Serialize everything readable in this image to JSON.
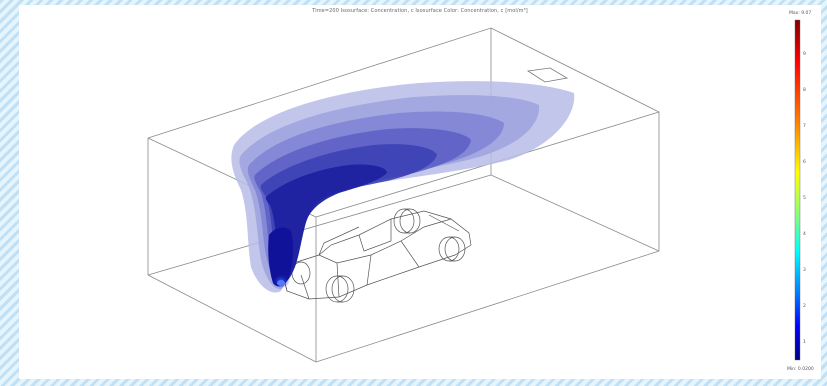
{
  "plot": {
    "title": "Time=200  Isosurface: Concentration, c  Isosurface Color: Concentration, c [mol/m³]"
  },
  "colorbar": {
    "max_label": "Max: 9.07",
    "min_label": "Min: 0.0200",
    "ticks": [
      "9",
      "8",
      "7",
      "6",
      "5",
      "4",
      "3",
      "2",
      "1"
    ],
    "colors": [
      "#800000",
      "#ff0000",
      "#ff8000",
      "#ffff00",
      "#80ff80",
      "#00ffff",
      "#0080ff",
      "#0000ff",
      "#000080"
    ]
  }
}
